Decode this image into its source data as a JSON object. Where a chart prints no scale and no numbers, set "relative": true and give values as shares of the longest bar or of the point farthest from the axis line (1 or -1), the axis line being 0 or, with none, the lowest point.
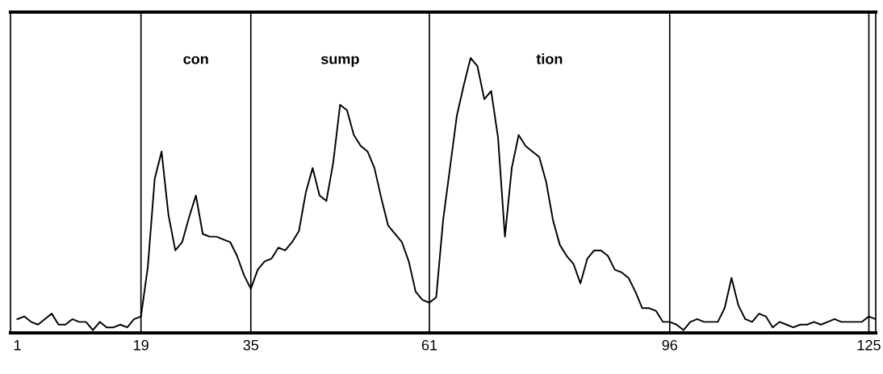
{
  "chart_data": {
    "type": "line",
    "relative": true,
    "color": "#000000",
    "x": [
      1,
      2,
      3,
      4,
      5,
      6,
      7,
      8,
      9,
      10,
      11,
      12,
      13,
      14,
      15,
      16,
      17,
      18,
      19,
      20,
      21,
      22,
      23,
      24,
      25,
      26,
      27,
      28,
      29,
      30,
      31,
      32,
      33,
      34,
      35,
      36,
      37,
      38,
      39,
      40,
      41,
      42,
      43,
      44,
      45,
      46,
      47,
      48,
      49,
      50,
      51,
      52,
      53,
      54,
      55,
      56,
      57,
      58,
      59,
      60,
      61,
      62,
      63,
      64,
      65,
      66,
      67,
      68,
      69,
      70,
      71,
      72,
      73,
      74,
      75,
      76,
      77,
      78,
      79,
      80,
      81,
      82,
      83,
      84,
      85,
      86,
      87,
      88,
      89,
      90,
      91,
      92,
      93,
      94,
      95,
      96,
      97,
      98,
      99,
      100,
      101,
      102,
      103,
      104,
      105,
      106,
      107,
      108,
      109,
      110,
      111,
      112,
      113,
      114,
      115,
      116,
      117,
      118,
      119,
      120,
      121,
      122,
      123,
      124,
      125,
      126
    ],
    "values": [
      0.05,
      0.06,
      0.04,
      0.03,
      0.05,
      0.07,
      0.03,
      0.03,
      0.05,
      0.04,
      0.04,
      0.01,
      0.04,
      0.02,
      0.02,
      0.03,
      0.02,
      0.05,
      0.06,
      0.24,
      0.56,
      0.66,
      0.43,
      0.3,
      0.33,
      0.42,
      0.5,
      0.36,
      0.35,
      0.35,
      0.34,
      0.33,
      0.28,
      0.21,
      0.16,
      0.23,
      0.26,
      0.27,
      0.31,
      0.3,
      0.33,
      0.37,
      0.51,
      0.6,
      0.5,
      0.48,
      0.62,
      0.83,
      0.81,
      0.72,
      0.68,
      0.66,
      0.6,
      0.49,
      0.39,
      0.36,
      0.33,
      0.26,
      0.15,
      0.12,
      0.11,
      0.13,
      0.41,
      0.6,
      0.79,
      0.9,
      1.0,
      0.97,
      0.85,
      0.88,
      0.71,
      0.35,
      0.6,
      0.72,
      0.68,
      0.66,
      0.64,
      0.55,
      0.41,
      0.32,
      0.28,
      0.25,
      0.18,
      0.27,
      0.3,
      0.3,
      0.28,
      0.23,
      0.22,
      0.2,
      0.15,
      0.09,
      0.09,
      0.08,
      0.04,
      0.04,
      0.03,
      0.01,
      0.04,
      0.05,
      0.04,
      0.04,
      0.04,
      0.09,
      0.2,
      0.1,
      0.05,
      0.04,
      0.07,
      0.06,
      0.02,
      0.04,
      0.03,
      0.02,
      0.03,
      0.03,
      0.04,
      0.03,
      0.04,
      0.05,
      0.04,
      0.04,
      0.04,
      0.04,
      0.06,
      0.05
    ],
    "xlim": [
      0,
      126
    ],
    "xticks": [
      1,
      19,
      35,
      61,
      96,
      125
    ],
    "grid": false,
    "marker": "none",
    "line_style": "solid",
    "tick_labels": "x",
    "ref_lines": [
      {
        "axis": "x",
        "value": 19,
        "color": "#000000"
      },
      {
        "axis": "x",
        "value": 35,
        "color": "#000000"
      },
      {
        "axis": "x",
        "value": 61,
        "color": "#000000"
      },
      {
        "axis": "x",
        "value": 96,
        "color": "#000000"
      },
      {
        "axis": "x",
        "value": 125,
        "color": "#000000"
      }
    ],
    "annotations": [
      "con",
      "sump",
      "tion"
    ]
  }
}
